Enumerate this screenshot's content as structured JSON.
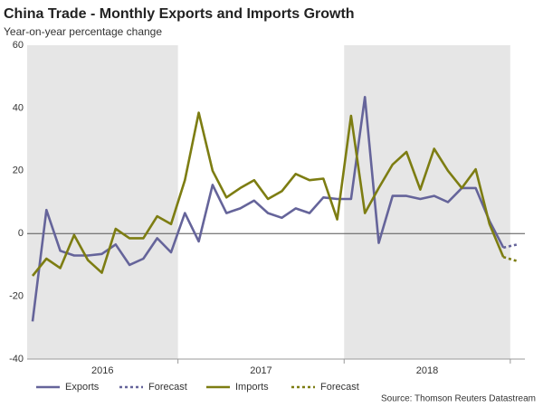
{
  "chart_data": {
    "type": "line",
    "title": "China Trade - Monthly Exports and Imports Growth",
    "subtitle": "Year-on-year percentage change",
    "source": "Source: Thomson Reuters Datastream",
    "year_labels": [
      "2016",
      "2017",
      "2018"
    ],
    "ylim": [
      -40,
      60
    ],
    "yticks": [
      -40,
      -20,
      0,
      20,
      40,
      60
    ],
    "series": [
      {
        "name": "Exports",
        "color": "#65649a",
        "dash": false,
        "values": [
          -28,
          7.5,
          -5.5,
          -7,
          -7,
          -6.5,
          -3.5,
          -10,
          -8,
          -1.5,
          -6,
          6.5,
          -2.5,
          15.5,
          6.5,
          8,
          10.5,
          6.5,
          5,
          8,
          6.5,
          11.5,
          11,
          11,
          43.5,
          -3,
          12,
          12,
          11,
          12,
          10,
          14.5,
          14.5,
          4,
          -4.5,
          null
        ]
      },
      {
        "name": "Forecast",
        "color": "#65649a",
        "dash": true,
        "values": [
          null,
          null,
          null,
          null,
          null,
          null,
          null,
          null,
          null,
          null,
          null,
          null,
          null,
          null,
          null,
          null,
          null,
          null,
          null,
          null,
          null,
          null,
          null,
          null,
          null,
          null,
          null,
          null,
          null,
          null,
          null,
          null,
          null,
          null,
          -4.5,
          -3.5
        ]
      },
      {
        "name": "Imports",
        "color": "#7d7d12",
        "dash": false,
        "values": [
          -13.5,
          -8,
          -11,
          -0.5,
          -8.5,
          -12.5,
          1.5,
          -1.5,
          -1.5,
          5.5,
          3,
          17,
          38.5,
          20,
          11.5,
          14.5,
          17,
          11,
          13.5,
          19,
          17,
          17.5,
          4.5,
          37.5,
          6.5,
          14.5,
          22,
          26,
          14,
          27,
          20,
          14.5,
          20.5,
          3,
          -7.5,
          null
        ]
      },
      {
        "name": "Forecast",
        "color": "#7d7d12",
        "dash": true,
        "values": [
          null,
          null,
          null,
          null,
          null,
          null,
          null,
          null,
          null,
          null,
          null,
          null,
          null,
          null,
          null,
          null,
          null,
          null,
          null,
          null,
          null,
          null,
          null,
          null,
          null,
          null,
          null,
          null,
          null,
          null,
          null,
          null,
          null,
          null,
          -7.5,
          -8.8
        ]
      }
    ]
  }
}
